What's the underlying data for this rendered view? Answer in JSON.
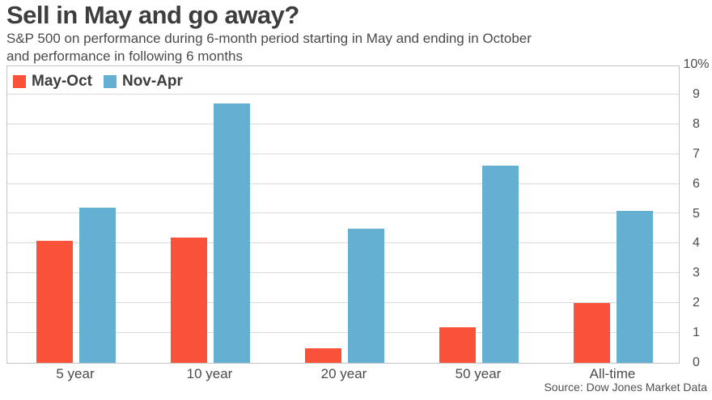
{
  "header": {
    "title": "Sell in May and go away?",
    "subtitle_line1": "S&P 500 on performance during 6-month period starting in May and ending in October",
    "subtitle_line2": "and performance in following 6 months"
  },
  "legend": {
    "items": [
      {
        "label": "May-Oct",
        "color": "#fa5238"
      },
      {
        "label": "Nov-Apr",
        "color": "#63b0d2"
      }
    ]
  },
  "chart_data": {
    "type": "bar",
    "title": "Sell in May and go away?",
    "categories": [
      "5 year",
      "10 year",
      "20 year",
      "50 year",
      "All-time"
    ],
    "series": [
      {
        "name": "May-Oct",
        "color": "#fa5238",
        "values": [
          4.1,
          4.2,
          0.5,
          1.2,
          2.0
        ]
      },
      {
        "name": "Nov-Apr",
        "color": "#63b0d2",
        "values": [
          5.2,
          8.7,
          4.5,
          6.6,
          5.1
        ]
      }
    ],
    "xlabel": "",
    "ylabel": "",
    "unit_suffix": "%",
    "ylim": [
      0,
      10
    ],
    "ytick_labels": [
      "10%",
      "9",
      "8",
      "7",
      "6",
      "5",
      "4",
      "3",
      "2",
      "1",
      "0"
    ],
    "grid": true,
    "legend_position": "top-left-inside"
  },
  "footer": {
    "source": "Source: Dow Jones Market Data"
  }
}
